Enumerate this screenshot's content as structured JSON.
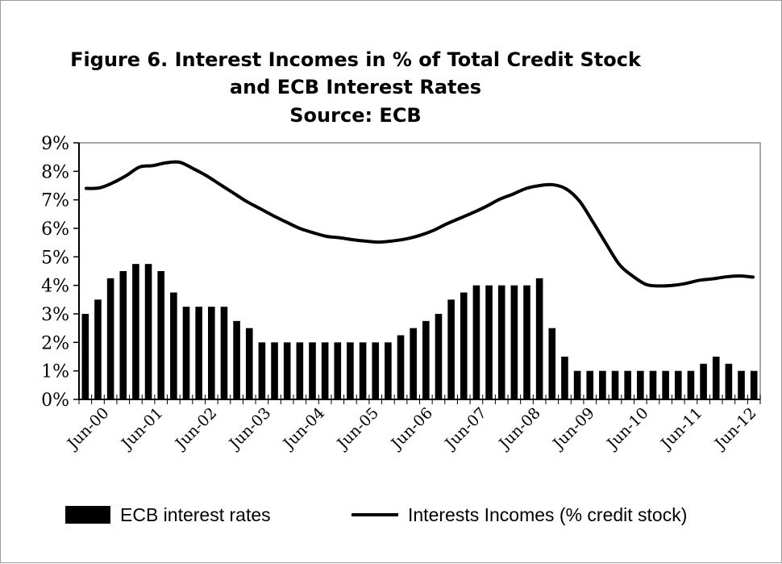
{
  "chart_data": {
    "type": "bar",
    "title_lines": [
      "Figure 6. Interest Incomes in % of Total Credit Stock",
      "and ECB Interest Rates",
      "Source: ECB"
    ],
    "xlabel": "",
    "ylabel": "",
    "ylim": [
      0,
      9
    ],
    "y_ticks": [
      "0%",
      "1%",
      "2%",
      "3%",
      "4%",
      "5%",
      "6%",
      "7%",
      "8%",
      "9%"
    ],
    "x_labels": [
      "Jun-00",
      "Jun-01",
      "Jun-02",
      "Jun-03",
      "Jun-04",
      "Jun-05",
      "Jun-06",
      "Jun-07",
      "Jun-08",
      "Jun-09",
      "Jun-10",
      "Jun-11",
      "Jun-12"
    ],
    "legend_placement": "bottom",
    "grid": false,
    "series": [
      {
        "name": "ECB interest rates",
        "kind": "bar",
        "color": "#000000",
        "values": [
          3.0,
          3.5,
          4.25,
          4.5,
          4.75,
          4.75,
          4.5,
          3.75,
          3.25,
          3.25,
          3.25,
          3.25,
          2.75,
          2.5,
          2.0,
          2.0,
          2.0,
          2.0,
          2.0,
          2.0,
          2.0,
          2.0,
          2.0,
          2.0,
          2.0,
          2.25,
          2.5,
          2.75,
          3.0,
          3.5,
          3.75,
          4.0,
          4.0,
          4.0,
          4.0,
          4.0,
          4.25,
          2.5,
          1.5,
          1.0,
          1.0,
          1.0,
          1.0,
          1.0,
          1.0,
          1.0,
          1.0,
          1.0,
          1.0,
          1.25,
          1.5,
          1.25,
          1.0,
          1.0
        ]
      },
      {
        "name": "Interests Incomes (% credit stock)",
        "kind": "line",
        "color": "#000000",
        "values": [
          7.4,
          7.42,
          7.6,
          7.85,
          8.15,
          8.2,
          8.3,
          8.32,
          8.1,
          7.85,
          7.55,
          7.25,
          6.95,
          6.7,
          6.45,
          6.22,
          6.0,
          5.85,
          5.72,
          5.67,
          5.6,
          5.55,
          5.52,
          5.56,
          5.63,
          5.75,
          5.92,
          6.15,
          6.35,
          6.55,
          6.77,
          7.02,
          7.2,
          7.4,
          7.5,
          7.53,
          7.38,
          6.95,
          6.22,
          5.45,
          4.72,
          4.32,
          4.03,
          3.98,
          4.0,
          4.07,
          4.18,
          4.23,
          4.3,
          4.33,
          4.29
        ]
      }
    ]
  }
}
